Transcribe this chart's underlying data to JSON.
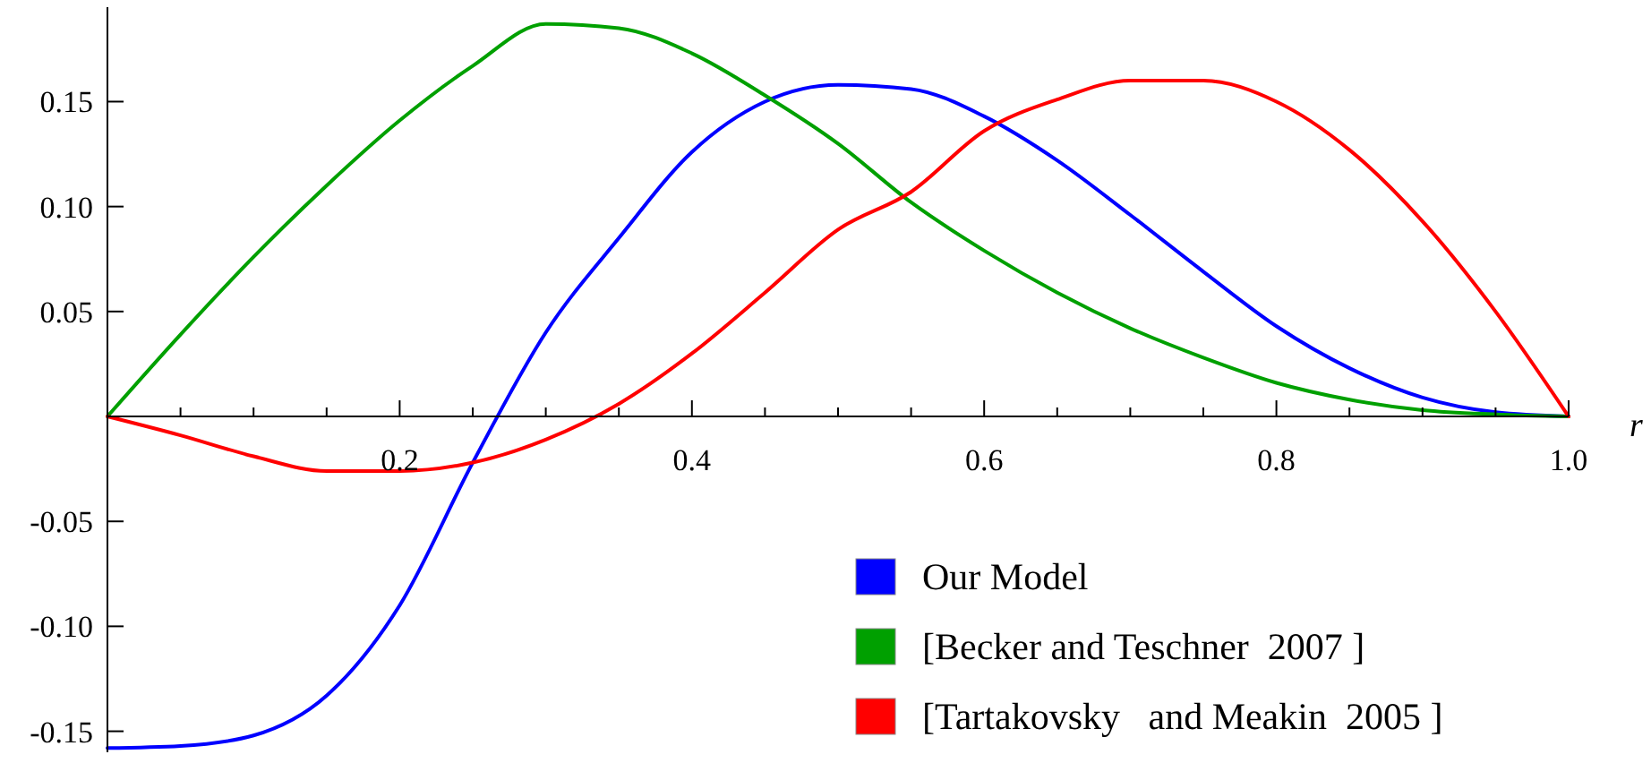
{
  "chart_data": {
    "type": "line",
    "xlabel": "r",
    "x": [
      0,
      0.05,
      0.1,
      0.15,
      0.2,
      0.25,
      0.3,
      0.35,
      0.4,
      0.45,
      0.5,
      0.55,
      0.6,
      0.65,
      0.7,
      0.75,
      0.8,
      0.85,
      0.9,
      0.95,
      1
    ],
    "series": [
      {
        "name": "Our Model",
        "color": "#0000ff",
        "values": [
          -0.158,
          -0.157,
          -0.152,
          -0.133,
          -0.09,
          -0.022,
          0.04,
          0.085,
          0.126,
          0.15,
          0.158,
          0.156,
          0.143,
          0.122,
          0.096,
          0.069,
          0.043,
          0.023,
          0.009,
          0.002,
          0
        ]
      },
      {
        "name": "[Becker and Teschner  2007 ]",
        "color": "#00a000",
        "values": [
          0,
          0.039,
          0.076,
          0.11,
          0.141,
          0.167,
          0.187,
          0.185,
          0.173,
          0.153,
          0.13,
          0.102,
          0.079,
          0.059,
          0.042,
          0.028,
          0.016,
          0.008,
          0.003,
          0.001,
          0
        ]
      },
      {
        "name": "[Tartakovsky   and Meakin  2005 ]",
        "color": "#ff0000",
        "values": [
          0,
          -0.009,
          -0.019,
          -0.026,
          -0.026,
          -0.022,
          -0.011,
          0.006,
          0.03,
          0.059,
          0.089,
          0.107,
          0.136,
          0.151,
          0.16,
          0.16,
          0.15,
          0.127,
          0.093,
          0.05,
          0
        ]
      }
    ],
    "xlim": [
      0,
      1
    ],
    "ylim": [
      -0.16,
      0.195
    ],
    "xticks": [
      {
        "value": 0.05,
        "label": null
      },
      {
        "value": 0.1,
        "label": null
      },
      {
        "value": 0.15,
        "label": null
      },
      {
        "value": 0.2,
        "label": "0.2"
      },
      {
        "value": 0.25,
        "label": null
      },
      {
        "value": 0.3,
        "label": null
      },
      {
        "value": 0.35,
        "label": null
      },
      {
        "value": 0.4,
        "label": "0.4"
      },
      {
        "value": 0.45,
        "label": null
      },
      {
        "value": 0.5,
        "label": null
      },
      {
        "value": 0.55,
        "label": null
      },
      {
        "value": 0.6,
        "label": "0.6"
      },
      {
        "value": 0.65,
        "label": null
      },
      {
        "value": 0.7,
        "label": null
      },
      {
        "value": 0.75,
        "label": null
      },
      {
        "value": 0.8,
        "label": "0.8"
      },
      {
        "value": 0.85,
        "label": null
      },
      {
        "value": 0.9,
        "label": null
      },
      {
        "value": 0.95,
        "label": null
      },
      {
        "value": 1,
        "label": "1.0"
      }
    ],
    "yticks": [
      {
        "value": -0.15,
        "label": "-0.15"
      },
      {
        "value": -0.1,
        "label": "-0.10"
      },
      {
        "value": -0.05,
        "label": "-0.05"
      },
      {
        "value": 0.05,
        "label": "0.05"
      },
      {
        "value": 0.1,
        "label": "0.10"
      },
      {
        "value": 0.15,
        "label": "0.15"
      }
    ],
    "grid": false,
    "legend": "bottom right",
    "marker": "none",
    "line_style": "solid"
  }
}
